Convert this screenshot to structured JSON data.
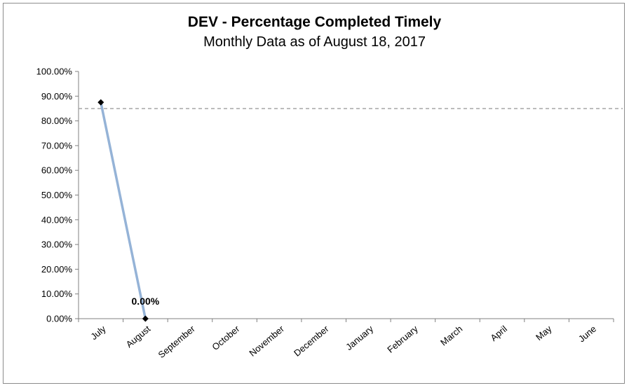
{
  "chart_data": {
    "type": "line",
    "title": "DEV - Percentage Completed Timely",
    "subtitle": "Monthly Data as of August 18, 2017",
    "xlabel": "",
    "ylabel": "",
    "categories": [
      "July",
      "August",
      "September",
      "October",
      "November",
      "December",
      "January",
      "February",
      "March",
      "April",
      "May",
      "June"
    ],
    "y_ticks": [
      "0.00%",
      "10.00%",
      "20.00%",
      "30.00%",
      "40.00%",
      "50.00%",
      "60.00%",
      "70.00%",
      "80.00%",
      "90.00%",
      "100.00%"
    ],
    "ylim": [
      0,
      100
    ],
    "grid": false,
    "legend": "none",
    "series": [
      {
        "values": [
          87.5,
          0,
          null,
          null,
          null,
          null,
          null,
          null,
          null,
          null,
          null,
          null
        ],
        "color": "#95b3d7",
        "marker": "diamond",
        "marker_color": "#000000"
      }
    ],
    "target_line": {
      "value": 85,
      "style": "dashed",
      "color": "#a6a6a6"
    },
    "data_labels": [
      {
        "category": "August",
        "text": "0.00%"
      }
    ]
  }
}
